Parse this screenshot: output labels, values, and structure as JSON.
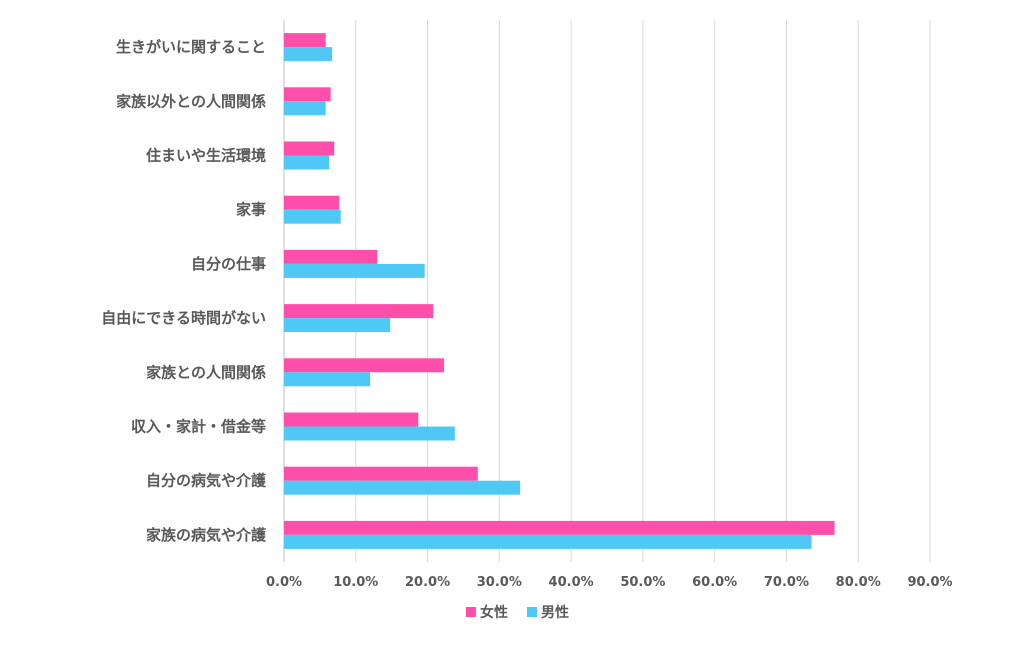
{
  "chart_data": {
    "type": "bar",
    "orientation": "horizontal",
    "title": "",
    "xlabel": "",
    "ylabel": "",
    "xlim": [
      0,
      90
    ],
    "x_ticks": [
      "0.0%",
      "10.0%",
      "20.0%",
      "30.0%",
      "40.0%",
      "50.0%",
      "60.0%",
      "70.0%",
      "80.0%",
      "90.0%"
    ],
    "grid": true,
    "legend_position": "bottom",
    "categories": [
      "生きがいに関すること",
      "家族以外との人間関係",
      "住まいや生活環境",
      "家事",
      "自分の仕事",
      "自由にできる時間がない",
      "家族との人間関係",
      "収入・家計・借金等",
      "自分の病気や介護",
      "家族の病気や介護"
    ],
    "series": [
      {
        "name": "女性",
        "color": "#FF4FAA",
        "values": [
          5.8,
          6.5,
          7.0,
          7.7,
          13.0,
          20.8,
          22.3,
          18.7,
          27.0,
          76.7
        ]
      },
      {
        "name": "男性",
        "color": "#4FC8F5",
        "values": [
          6.7,
          5.8,
          6.3,
          7.9,
          19.6,
          14.8,
          12.0,
          23.8,
          32.9,
          73.5
        ]
      }
    ]
  }
}
